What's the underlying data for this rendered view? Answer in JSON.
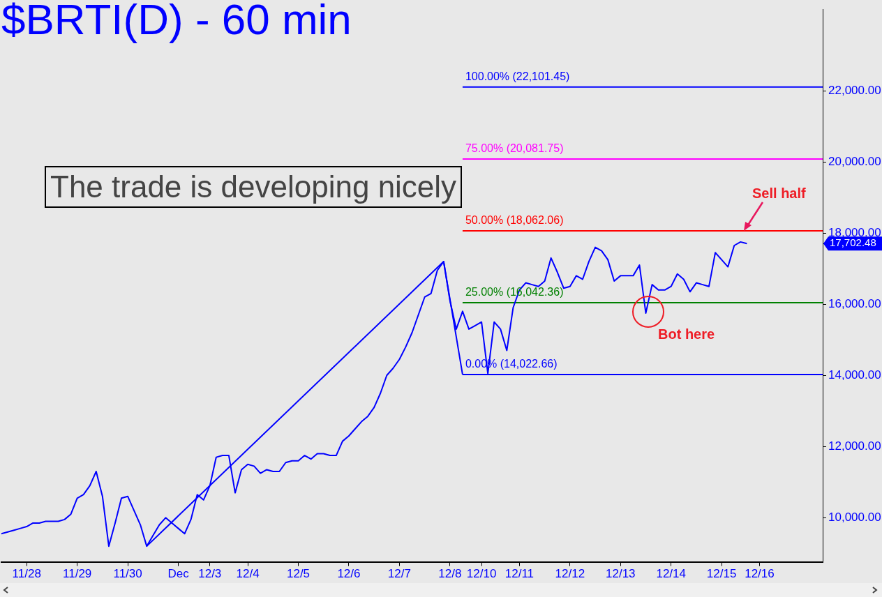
{
  "chart_data": {
    "type": "line",
    "title": "$BRTI(D) - 60 min",
    "categories": [
      null,
      null,
      null,
      null,
      "11/28",
      null,
      null,
      null,
      null,
      null,
      null,
      null,
      "11/29",
      null,
      null,
      null,
      null,
      null,
      null,
      null,
      "11/30",
      null,
      null,
      null,
      null,
      null,
      null,
      null,
      "Dec",
      null,
      null,
      null,
      null,
      "12/3",
      null,
      null,
      null,
      null,
      null,
      "12/4",
      null,
      null,
      null,
      null,
      null,
      null,
      null,
      "12/5",
      null,
      null,
      null,
      null,
      null,
      null,
      null,
      "12/6",
      null,
      null,
      null,
      null,
      null,
      null,
      null,
      "12/7",
      null,
      null,
      null,
      null,
      null,
      null,
      null,
      "12/8",
      null,
      null,
      null,
      null,
      "12/10",
      null,
      null,
      null,
      null,
      null,
      "12/11",
      null,
      null,
      null,
      null,
      null,
      null,
      null,
      "12/12",
      null,
      null,
      null,
      null,
      null,
      null,
      null,
      "12/13",
      null,
      null,
      null,
      null,
      null,
      null,
      null,
      "12/14",
      null,
      null,
      null,
      null,
      null,
      null,
      null,
      "12/15",
      null,
      null,
      null,
      null,
      null,
      "12/16",
      null,
      null,
      null,
      null,
      null,
      null,
      null,
      null,
      null,
      null
    ],
    "ylim": [
      8760,
      24290
    ],
    "yticks": [
      {
        "value": 10000,
        "label": "10,000.00"
      },
      {
        "value": 12000,
        "label": "12,000.00"
      },
      {
        "value": 14000,
        "label": "14,000.00"
      },
      {
        "value": 16000,
        "label": "16,000.00"
      },
      {
        "value": 17702.48,
        "label": "17,702.48"
      },
      {
        "value": 18000,
        "label": "18,000.00"
      },
      {
        "value": 20000,
        "label": "20,000.00"
      },
      {
        "value": 22000,
        "label": "22,000.00"
      }
    ],
    "series": [
      {
        "color": "#0000ff",
        "values": [
          9550,
          9600,
          9650,
          9700,
          9750,
          9850,
          9850,
          9900,
          9900,
          9900,
          9950,
          10100,
          10550,
          10650,
          10900,
          11300,
          10600,
          9200,
          9850,
          10550,
          10600,
          10200,
          9800,
          9200,
          9500,
          9800,
          10000,
          9850,
          9700,
          9550,
          9950,
          10650,
          10500,
          10900,
          11700,
          11750,
          11750,
          10700,
          11350,
          11500,
          11450,
          11250,
          11350,
          11300,
          11300,
          11550,
          11600,
          11600,
          11750,
          11650,
          11800,
          11800,
          11750,
          11750,
          12150,
          12300,
          12500,
          12700,
          12850,
          13100,
          13500,
          14000,
          14200,
          14450,
          14800,
          15200,
          15700,
          16200,
          16300,
          16950,
          17200,
          16100,
          15300,
          15800,
          15300,
          15400,
          15500,
          14050,
          15500,
          15300,
          14700,
          15900,
          16400,
          16600,
          16550,
          16500,
          16650,
          17300,
          16900,
          16450,
          16500,
          16800,
          16700,
          17200,
          17600,
          17500,
          17250,
          16650,
          16800,
          16800,
          16800,
          17100,
          15750,
          16550,
          16400,
          16400,
          16500,
          16850,
          16700,
          16350,
          16600,
          16550,
          16500,
          17450,
          17250,
          17050,
          17650,
          17750,
          17702.48,
          null,
          null,
          null,
          null,
          null,
          null,
          null,
          null,
          null,
          null,
          null,
          null
        ]
      },
      {
        "color": "#0000ff",
        "values": [
          null,
          null,
          null,
          null,
          null,
          null,
          null,
          null,
          null,
          null,
          null,
          null,
          null,
          null,
          null,
          null,
          null,
          null,
          null,
          null,
          null,
          null,
          null,
          9200,
          null,
          null,
          null,
          null,
          null,
          null,
          null,
          null,
          null,
          null,
          null,
          null,
          null,
          null,
          null,
          null,
          null,
          null,
          null,
          null,
          null,
          null,
          null,
          null,
          null,
          null,
          null,
          null,
          null,
          null,
          null,
          null,
          null,
          null,
          null,
          null,
          null,
          null,
          null,
          null,
          null,
          null,
          null,
          null,
          null,
          null,
          17200,
          null,
          null,
          14022.66,
          null,
          null,
          null,
          null,
          null,
          null,
          null,
          null,
          null,
          null,
          null,
          null,
          null,
          null,
          null,
          null,
          null,
          null,
          null,
          null,
          null,
          null,
          null,
          null,
          null,
          null,
          null,
          null,
          null,
          null,
          null,
          null,
          null,
          null,
          null,
          null,
          null,
          null,
          null,
          null,
          null,
          null,
          null,
          null,
          null,
          null,
          null,
          null,
          null,
          null,
          null,
          null,
          null,
          null,
          null,
          null,
          null
        ]
      },
      {
        "name": "100.00% (22,101.45)",
        "color": "#0000ff",
        "values": [
          null,
          null,
          null,
          null,
          null,
          null,
          null,
          null,
          null,
          null,
          null,
          null,
          null,
          null,
          null,
          null,
          null,
          null,
          null,
          null,
          null,
          null,
          null,
          null,
          null,
          null,
          null,
          null,
          null,
          null,
          null,
          null,
          null,
          null,
          null,
          null,
          null,
          null,
          null,
          null,
          null,
          null,
          null,
          null,
          null,
          null,
          null,
          null,
          null,
          null,
          null,
          null,
          null,
          null,
          null,
          null,
          null,
          null,
          null,
          null,
          null,
          null,
          null,
          null,
          null,
          null,
          null,
          null,
          null,
          null,
          null,
          null,
          null,
          22101.45,
          null,
          null,
          null,
          null,
          null,
          null,
          null,
          null,
          null,
          null,
          null,
          null,
          null,
          null,
          null,
          null,
          null,
          null,
          null,
          null,
          null,
          null,
          null,
          null,
          null,
          null,
          null,
          null,
          null,
          null,
          null,
          null,
          null,
          null,
          null,
          null,
          null,
          null,
          null,
          null,
          null,
          null,
          null,
          null,
          null,
          null,
          null,
          null,
          null,
          null,
          null,
          null,
          null,
          null,
          null,
          null,
          22101.45
        ]
      },
      {
        "name": "75.00% (20,081.75)",
        "color": "#ff00ff",
        "values": [
          null,
          null,
          null,
          null,
          null,
          null,
          null,
          null,
          null,
          null,
          null,
          null,
          null,
          null,
          null,
          null,
          null,
          null,
          null,
          null,
          null,
          null,
          null,
          null,
          null,
          null,
          null,
          null,
          null,
          null,
          null,
          null,
          null,
          null,
          null,
          null,
          null,
          null,
          null,
          null,
          null,
          null,
          null,
          null,
          null,
          null,
          null,
          null,
          null,
          null,
          null,
          null,
          null,
          null,
          null,
          null,
          null,
          null,
          null,
          null,
          null,
          null,
          null,
          null,
          null,
          null,
          null,
          null,
          null,
          null,
          null,
          null,
          null,
          20081.75,
          null,
          null,
          null,
          null,
          null,
          null,
          null,
          null,
          null,
          null,
          null,
          null,
          null,
          null,
          null,
          null,
          null,
          null,
          null,
          null,
          null,
          null,
          null,
          null,
          null,
          null,
          null,
          null,
          null,
          null,
          null,
          null,
          null,
          null,
          null,
          null,
          null,
          null,
          null,
          null,
          null,
          null,
          null,
          null,
          null,
          null,
          null,
          null,
          null,
          null,
          null,
          null,
          null,
          null,
          null,
          null,
          20081.75
        ]
      },
      {
        "name": "50.00% (18,062.06)",
        "color": "#ff0000",
        "values": [
          null,
          null,
          null,
          null,
          null,
          null,
          null,
          null,
          null,
          null,
          null,
          null,
          null,
          null,
          null,
          null,
          null,
          null,
          null,
          null,
          null,
          null,
          null,
          null,
          null,
          null,
          null,
          null,
          null,
          null,
          null,
          null,
          null,
          null,
          null,
          null,
          null,
          null,
          null,
          null,
          null,
          null,
          null,
          null,
          null,
          null,
          null,
          null,
          null,
          null,
          null,
          null,
          null,
          null,
          null,
          null,
          null,
          null,
          null,
          null,
          null,
          null,
          null,
          null,
          null,
          null,
          null,
          null,
          null,
          null,
          null,
          null,
          null,
          18062.06,
          null,
          null,
          null,
          null,
          null,
          null,
          null,
          null,
          null,
          null,
          null,
          null,
          null,
          null,
          null,
          null,
          null,
          null,
          null,
          null,
          null,
          null,
          null,
          null,
          null,
          null,
          null,
          null,
          null,
          null,
          null,
          null,
          null,
          null,
          null,
          null,
          null,
          null,
          null,
          null,
          null,
          null,
          null,
          null,
          null,
          null,
          null,
          null,
          null,
          null,
          null,
          null,
          null,
          null,
          null,
          null,
          18062.06
        ]
      },
      {
        "name": "25.00% (16,042.36)",
        "color": "#008000",
        "values": [
          null,
          null,
          null,
          null,
          null,
          null,
          null,
          null,
          null,
          null,
          null,
          null,
          null,
          null,
          null,
          null,
          null,
          null,
          null,
          null,
          null,
          null,
          null,
          null,
          null,
          null,
          null,
          null,
          null,
          null,
          null,
          null,
          null,
          null,
          null,
          null,
          null,
          null,
          null,
          null,
          null,
          null,
          null,
          null,
          null,
          null,
          null,
          null,
          null,
          null,
          null,
          null,
          null,
          null,
          null,
          null,
          null,
          null,
          null,
          null,
          null,
          null,
          null,
          null,
          null,
          null,
          null,
          null,
          null,
          null,
          null,
          null,
          null,
          16042.36,
          null,
          null,
          null,
          null,
          null,
          null,
          null,
          null,
          null,
          null,
          null,
          null,
          null,
          null,
          null,
          null,
          null,
          null,
          null,
          null,
          null,
          null,
          null,
          null,
          null,
          null,
          null,
          null,
          null,
          null,
          null,
          null,
          null,
          null,
          null,
          null,
          null,
          null,
          null,
          null,
          null,
          null,
          null,
          null,
          null,
          null,
          null,
          null,
          null,
          null,
          null,
          null,
          null,
          null,
          null,
          null,
          16042.36
        ]
      },
      {
        "name": "0.00% (14,022.66)",
        "color": "#0000ff",
        "values": [
          null,
          null,
          null,
          null,
          null,
          null,
          null,
          null,
          null,
          null,
          null,
          null,
          null,
          null,
          null,
          null,
          null,
          null,
          null,
          null,
          null,
          null,
          null,
          null,
          null,
          null,
          null,
          null,
          null,
          null,
          null,
          null,
          null,
          null,
          null,
          null,
          null,
          null,
          null,
          null,
          null,
          null,
          null,
          null,
          null,
          null,
          null,
          null,
          null,
          null,
          null,
          null,
          null,
          null,
          null,
          null,
          null,
          null,
          null,
          null,
          null,
          null,
          null,
          null,
          null,
          null,
          null,
          null,
          null,
          null,
          null,
          null,
          null,
          14022.66,
          null,
          null,
          null,
          null,
          null,
          null,
          null,
          null,
          null,
          null,
          null,
          null,
          null,
          null,
          null,
          null,
          null,
          null,
          null,
          null,
          null,
          null,
          null,
          null,
          null,
          null,
          null,
          null,
          null,
          null,
          null,
          null,
          null,
          null,
          null,
          null,
          null,
          null,
          null,
          null,
          null,
          null,
          null,
          null,
          null,
          null,
          null,
          null,
          null,
          null,
          null,
          null,
          null,
          null,
          null,
          null,
          14022.66
        ]
      }
    ],
    "annotations": [
      "The trade is developing nicely",
      "Sell half",
      "Bot here"
    ]
  }
}
